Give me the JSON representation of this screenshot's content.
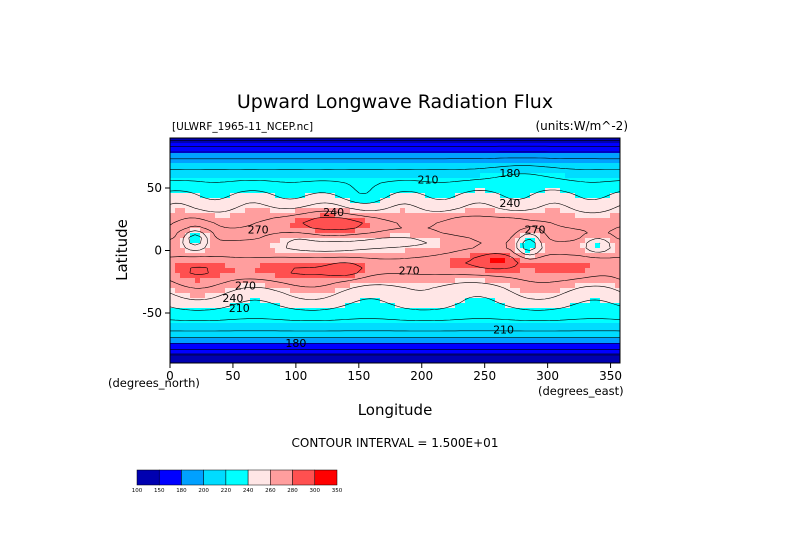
{
  "chart_data": {
    "type": "heatmap",
    "title": "Upward Longwave Radiation Flux",
    "dataset_label": "[ULWRF_1965-11_NCEP.nc]",
    "units_label": "(units:W/m^-2)",
    "xlabel": "Longitude",
    "ylabel": "Latitude",
    "x_unit_label": "(degrees_east)",
    "y_unit_label": "(degrees_north)",
    "xlim": [
      0,
      357.5
    ],
    "ylim": [
      -90,
      90
    ],
    "x_ticks": [
      0,
      50,
      100,
      150,
      200,
      250,
      300,
      350
    ],
    "y_ticks": [
      -50,
      0,
      50
    ],
    "contour_interval_text": "CONTOUR INTERVAL = 1.500E+01",
    "colorbar": {
      "levels": [
        100,
        150,
        180,
        200,
        220,
        240,
        260,
        280,
        300,
        350
      ],
      "level_labels": [
        "100",
        "150",
        "180",
        "200",
        "220",
        "240",
        "260",
        "280",
        "300",
        "350"
      ],
      "colors": [
        "#0000b0",
        "#0000ff",
        "#00a0ff",
        "#00dcff",
        "#00ffff",
        "#ffe6e6",
        "#ff9e9e",
        "#ff5050",
        "#ff0000"
      ]
    },
    "contour_labels": [
      {
        "text": "210",
        "lon": 205,
        "lat": 57
      },
      {
        "text": "180",
        "lon": 270,
        "lat": 62
      },
      {
        "text": "240",
        "lon": 130,
        "lat": 31
      },
      {
        "text": "240",
        "lon": 270,
        "lat": 38
      },
      {
        "text": "270",
        "lon": 70,
        "lat": 17
      },
      {
        "text": "270",
        "lon": 290,
        "lat": 17
      },
      {
        "text": "270",
        "lon": 190,
        "lat": -16
      },
      {
        "text": "270",
        "lon": 60,
        "lat": -28
      },
      {
        "text": "240",
        "lon": 50,
        "lat": -38
      },
      {
        "text": "210",
        "lon": 55,
        "lat": -46
      },
      {
        "text": "210",
        "lon": 265,
        "lat": -63
      },
      {
        "text": "180",
        "lon": 100,
        "lat": -74
      }
    ]
  }
}
